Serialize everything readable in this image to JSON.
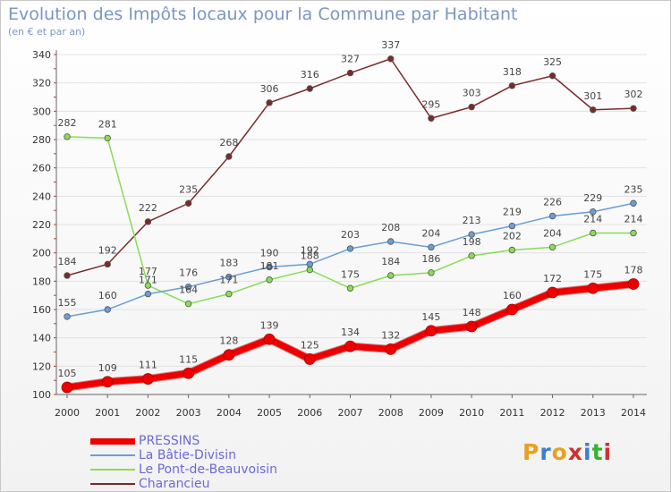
{
  "title": "Evolution des Impôts locaux pour la Commune par Habitant",
  "subtitle": "(en € et par an)",
  "logo": {
    "text": "Proxiti",
    "colors": [
      "#e8a020",
      "#3a7fd0",
      "#e8a020",
      "#d03030",
      "#3a7fd0",
      "#3ab030",
      "#d03030"
    ]
  },
  "chart_data": {
    "type": "line",
    "title": "Evolution des Impôts locaux pour la Commune par Habitant",
    "subtitle": "(en € et par an)",
    "xlabel": "",
    "ylabel": "",
    "x": [
      2000,
      2001,
      2002,
      2003,
      2004,
      2005,
      2006,
      2007,
      2008,
      2009,
      2010,
      2011,
      2012,
      2013,
      2014
    ],
    "ylim": [
      100,
      340
    ],
    "yticks": [
      100,
      120,
      140,
      160,
      180,
      200,
      220,
      240,
      260,
      280,
      300,
      320,
      340
    ],
    "grid": "horizontal",
    "legend_position": "bottom-left",
    "series": [
      {
        "name": "PRESSINS",
        "color": "#ee0000",
        "width": 7,
        "labelOffset": -12,
        "values": [
          105,
          109,
          111,
          115,
          128,
          139,
          125,
          134,
          132,
          145,
          148,
          160,
          172,
          175,
          178
        ]
      },
      {
        "name": "La Bâtie-Divisin",
        "color": "#6a9ed4",
        "width": 1.5,
        "labelOffset": -12,
        "values": [
          155,
          160,
          171,
          176,
          183,
          190,
          192,
          203,
          208,
          204,
          213,
          219,
          226,
          229,
          235
        ]
      },
      {
        "name": "Le Pont-de-Beauvoisin",
        "color": "#88dd55",
        "width": 1.5,
        "labelOffset": -12,
        "values": [
          282,
          281,
          177,
          164,
          171,
          181,
          188,
          175,
          184,
          186,
          198,
          202,
          204,
          214,
          214
        ]
      },
      {
        "name": "Charancieu",
        "color": "#7a2a2a",
        "width": 1.5,
        "labelOffset": -12,
        "values": [
          184,
          192,
          222,
          235,
          268,
          306,
          316,
          327,
          337,
          295,
          303,
          318,
          325,
          301,
          302
        ]
      }
    ]
  }
}
